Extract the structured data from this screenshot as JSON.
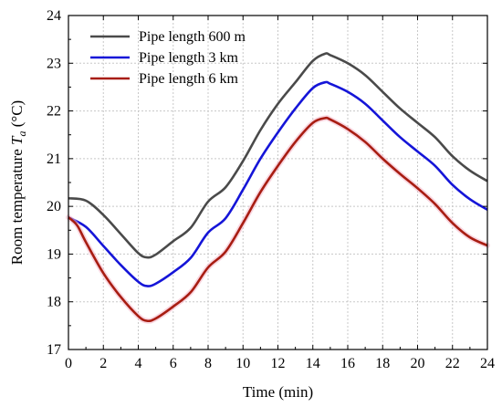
{
  "chart_data": {
    "type": "line",
    "xlabel": "Time (min)",
    "ylabel_prefix": "Room temperature ",
    "ylabel_var": "T",
    "ylabel_sub": "a",
    "ylabel_unit": " (°C)",
    "xlim": [
      0,
      24
    ],
    "ylim": [
      17,
      24
    ],
    "xticks": [
      0,
      2,
      4,
      6,
      8,
      10,
      12,
      14,
      16,
      18,
      20,
      22,
      24
    ],
    "yticks": [
      17,
      18,
      19,
      20,
      21,
      22,
      23,
      24
    ],
    "grid": true,
    "legend_position": "top-left",
    "series": [
      {
        "name": "Pipe length 600 m",
        "color": "#4a4a4a",
        "x": [
          0,
          1,
          2,
          3,
          4,
          4.5,
          5,
          6,
          7,
          8,
          9,
          10,
          11,
          12,
          13,
          14,
          14.7,
          15,
          16,
          17,
          18,
          19,
          20,
          21,
          22,
          23,
          24
        ],
        "y": [
          20.17,
          20.12,
          19.82,
          19.42,
          19.02,
          18.93,
          18.99,
          19.27,
          19.55,
          20.1,
          20.4,
          20.95,
          21.6,
          22.15,
          22.6,
          23.05,
          23.2,
          23.17,
          23.0,
          22.75,
          22.4,
          22.05,
          21.75,
          21.45,
          21.05,
          20.75,
          20.53
        ]
      },
      {
        "name": "Pipe length 3 km",
        "color": "#1515d8",
        "x": [
          0,
          1,
          2,
          3,
          4,
          4.5,
          5,
          6,
          7,
          8,
          9,
          10,
          11,
          12,
          13,
          14,
          14.7,
          15,
          16,
          17,
          18,
          19,
          20,
          21,
          22,
          23,
          24
        ],
        "y": [
          19.77,
          19.57,
          19.17,
          18.77,
          18.42,
          18.33,
          18.38,
          18.62,
          18.92,
          19.45,
          19.75,
          20.35,
          21.0,
          21.55,
          22.05,
          22.48,
          22.6,
          22.57,
          22.4,
          22.15,
          21.8,
          21.45,
          21.15,
          20.85,
          20.45,
          20.15,
          19.93
        ]
      },
      {
        "name": "Pipe length 6 km",
        "color": "#a81d12",
        "x": [
          0,
          0.5,
          1,
          2,
          3,
          4,
          4.5,
          5,
          6,
          7,
          8,
          9,
          10,
          11,
          12,
          13,
          14,
          14.7,
          15,
          16,
          17,
          18,
          19,
          20,
          21,
          22,
          23,
          24
        ],
        "y": [
          19.77,
          19.6,
          19.25,
          18.6,
          18.1,
          17.7,
          17.6,
          17.65,
          17.9,
          18.2,
          18.72,
          19.05,
          19.65,
          20.3,
          20.85,
          21.35,
          21.75,
          21.85,
          21.82,
          21.62,
          21.35,
          21.0,
          20.68,
          20.38,
          20.05,
          19.65,
          19.35,
          19.18
        ]
      }
    ]
  }
}
